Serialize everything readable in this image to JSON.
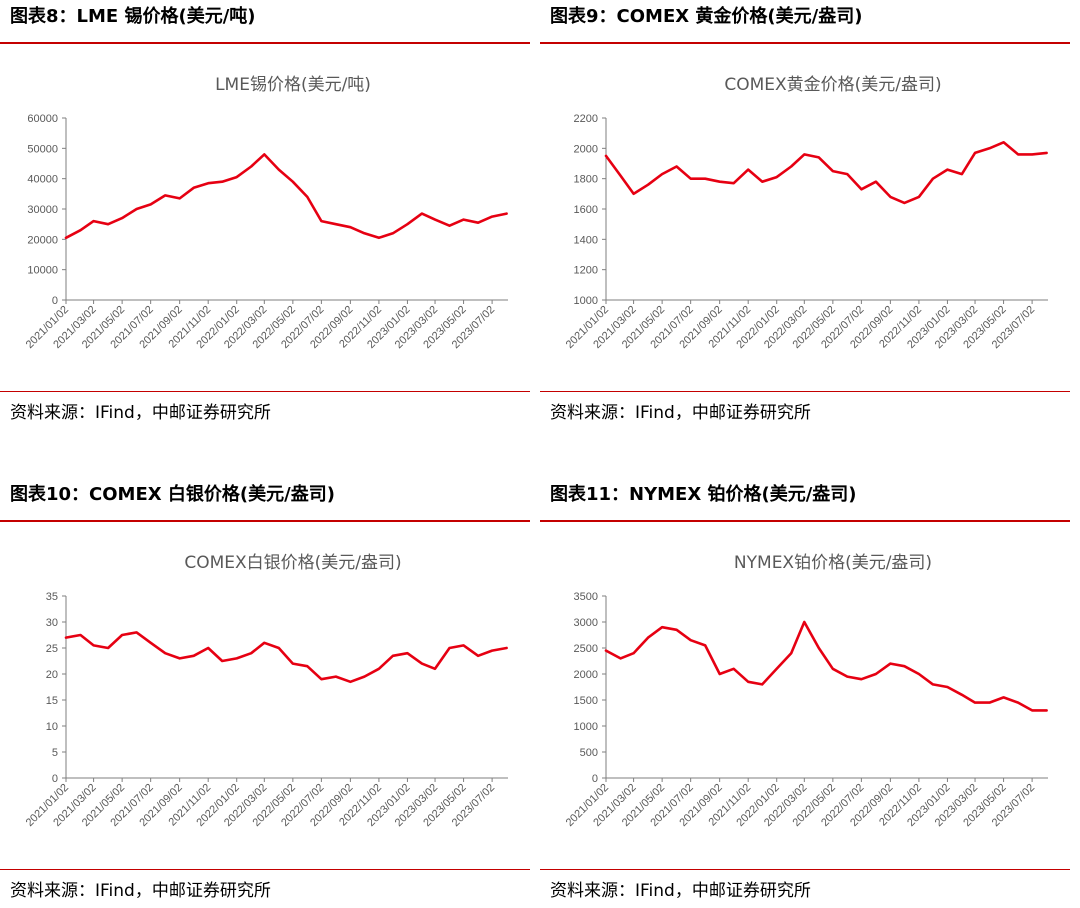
{
  "source_text": "资料来源：IFind，中邮证券研究所",
  "x_labels": [
    "2021/01/02",
    "2021/03/02",
    "2021/05/02",
    "2021/07/02",
    "2021/09/02",
    "2021/11/02",
    "2022/01/02",
    "2022/03/02",
    "2022/05/02",
    "2022/07/02",
    "2022/09/02",
    "2022/11/02",
    "2023/01/02",
    "2023/03/02",
    "2023/05/02",
    "2023/07/02"
  ],
  "panels": [
    {
      "header": "图表8：LME 锡价格(美元/吨)",
      "chart_data": {
        "type": "line",
        "title": "LME锡价格(美元/吨)",
        "ylim": [
          0,
          60000
        ],
        "yticks": [
          0,
          10000,
          20000,
          30000,
          40000,
          50000,
          60000
        ],
        "series": [
          {
            "color": "#e60012",
            "x": [
              "2021/01/02",
              "2021/02/02",
              "2021/03/02",
              "2021/04/02",
              "2021/05/02",
              "2021/06/02",
              "2021/07/02",
              "2021/08/02",
              "2021/09/02",
              "2021/10/02",
              "2021/11/02",
              "2021/12/02",
              "2022/01/02",
              "2022/02/02",
              "2022/03/02",
              "2022/04/02",
              "2022/05/02",
              "2022/06/02",
              "2022/07/02",
              "2022/08/02",
              "2022/09/02",
              "2022/10/02",
              "2022/11/02",
              "2022/12/02",
              "2023/01/02",
              "2023/02/02",
              "2023/03/02",
              "2023/04/02",
              "2023/05/02",
              "2023/06/02",
              "2023/07/02",
              "2023/08/02"
            ],
            "y": [
              20500,
              23000,
              26000,
              25000,
              27000,
              30000,
              31500,
              34500,
              33500,
              37000,
              38500,
              39000,
              40500,
              44000,
              48000,
              43000,
              39000,
              34000,
              26000,
              25000,
              24000,
              22000,
              20500,
              22000,
              25000,
              28500,
              26500,
              24500,
              26500,
              25500,
              27500,
              28500
            ]
          }
        ]
      }
    },
    {
      "header": "图表9：COMEX 黄金价格(美元/盎司)",
      "chart_data": {
        "type": "line",
        "title": "COMEX黄金价格(美元/盎司)",
        "ylim": [
          1000,
          2200
        ],
        "yticks": [
          1000,
          1200,
          1400,
          1600,
          1800,
          2000,
          2200
        ],
        "series": [
          {
            "color": "#e60012",
            "x": [
              "2021/01/02",
              "2021/02/02",
              "2021/03/02",
              "2021/04/02",
              "2021/05/02",
              "2021/06/02",
              "2021/07/02",
              "2021/08/02",
              "2021/09/02",
              "2021/10/02",
              "2021/11/02",
              "2021/12/02",
              "2022/01/02",
              "2022/02/02",
              "2022/03/02",
              "2022/04/02",
              "2022/05/02",
              "2022/06/02",
              "2022/07/02",
              "2022/08/02",
              "2022/09/02",
              "2022/10/02",
              "2022/11/02",
              "2022/12/02",
              "2023/01/02",
              "2023/02/02",
              "2023/03/02",
              "2023/04/02",
              "2023/05/02",
              "2023/06/02",
              "2023/07/02",
              "2023/08/02"
            ],
            "y": [
              1950,
              1820,
              1700,
              1760,
              1830,
              1880,
              1800,
              1800,
              1780,
              1770,
              1860,
              1780,
              1810,
              1880,
              1960,
              1940,
              1850,
              1830,
              1730,
              1780,
              1680,
              1640,
              1680,
              1800,
              1860,
              1830,
              1970,
              2000,
              2040,
              1960,
              1960,
              1970
            ]
          }
        ]
      }
    },
    {
      "header": "图表10：COMEX 白银价格(美元/盎司)",
      "chart_data": {
        "type": "line",
        "title": "COMEX白银价格(美元/盎司)",
        "ylim": [
          0,
          35
        ],
        "yticks": [
          0,
          5,
          10,
          15,
          20,
          25,
          30,
          35
        ],
        "series": [
          {
            "color": "#e60012",
            "x": [
              "2021/01/02",
              "2021/02/02",
              "2021/03/02",
              "2021/04/02",
              "2021/05/02",
              "2021/06/02",
              "2021/07/02",
              "2021/08/02",
              "2021/09/02",
              "2021/10/02",
              "2021/11/02",
              "2021/12/02",
              "2022/01/02",
              "2022/02/02",
              "2022/03/02",
              "2022/04/02",
              "2022/05/02",
              "2022/06/02",
              "2022/07/02",
              "2022/08/02",
              "2022/09/02",
              "2022/10/02",
              "2022/11/02",
              "2022/12/02",
              "2023/01/02",
              "2023/02/02",
              "2023/03/02",
              "2023/04/02",
              "2023/05/02",
              "2023/06/02",
              "2023/07/02",
              "2023/08/02"
            ],
            "y": [
              27,
              27.5,
              25.5,
              25,
              27.5,
              28,
              26,
              24,
              23,
              23.5,
              25,
              22.5,
              23,
              24,
              26,
              25,
              22,
              21.5,
              19,
              19.5,
              18.5,
              19.5,
              21,
              23.5,
              24,
              22,
              21,
              25,
              25.5,
              23.5,
              24.5,
              25
            ]
          }
        ]
      }
    },
    {
      "header": "图表11：NYMEX 铂价格(美元/盎司)",
      "chart_data": {
        "type": "line",
        "title": "NYMEX铂价格(美元/盎司)",
        "ylim": [
          0,
          3500
        ],
        "yticks": [
          0,
          500,
          1000,
          1500,
          2000,
          2500,
          3000,
          3500
        ],
        "series": [
          {
            "color": "#e60012",
            "x": [
              "2021/01/02",
              "2021/02/02",
              "2021/03/02",
              "2021/04/02",
              "2021/05/02",
              "2021/06/02",
              "2021/07/02",
              "2021/08/02",
              "2021/09/02",
              "2021/10/02",
              "2021/11/02",
              "2021/12/02",
              "2022/01/02",
              "2022/02/02",
              "2022/03/02",
              "2022/04/02",
              "2022/05/02",
              "2022/06/02",
              "2022/07/02",
              "2022/08/02",
              "2022/09/02",
              "2022/10/02",
              "2022/11/02",
              "2022/12/02",
              "2023/01/02",
              "2023/02/02",
              "2023/03/02",
              "2023/04/02",
              "2023/05/02",
              "2023/06/02",
              "2023/07/02",
              "2023/08/02"
            ],
            "y": [
              2450,
              2300,
              2400,
              2700,
              2900,
              2850,
              2650,
              2550,
              2000,
              2100,
              1850,
              1800,
              2100,
              2400,
              3000,
              2500,
              2100,
              1950,
              1900,
              2000,
              2200,
              2150,
              2000,
              1800,
              1750,
              1600,
              1450,
              1450,
              1550,
              1450,
              1300,
              1300
            ]
          }
        ]
      }
    }
  ]
}
